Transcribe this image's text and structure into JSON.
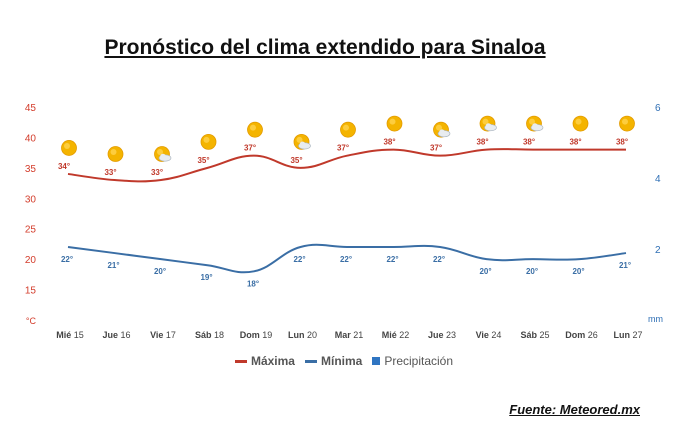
{
  "title": "Pronóstico del clima extendido para Sinaloa",
  "source": "Fuente: Meteored.mx",
  "colors": {
    "max": "#c0392b",
    "min": "#3a6ea5",
    "precip": "#2f75c2",
    "axis_left": "#d33c2b",
    "axis_right": "#2f6fb5"
  },
  "legend": {
    "max_label": "Máxima",
    "min_label": "Mínima",
    "precip_label": "Precipitación"
  },
  "chart_data": {
    "type": "line",
    "categories": [
      {
        "day": "Mié",
        "num": "15"
      },
      {
        "day": "Jue",
        "num": "16"
      },
      {
        "day": "Vie",
        "num": "17"
      },
      {
        "day": "Sáb",
        "num": "18"
      },
      {
        "day": "Dom",
        "num": "19"
      },
      {
        "day": "Lun",
        "num": "20"
      },
      {
        "day": "Mar",
        "num": "21"
      },
      {
        "day": "Mié",
        "num": "22"
      },
      {
        "day": "Jue",
        "num": "23"
      },
      {
        "day": "Vie",
        "num": "24"
      },
      {
        "day": "Sáb",
        "num": "25"
      },
      {
        "day": "Dom",
        "num": "26"
      },
      {
        "day": "Lun",
        "num": "27"
      }
    ],
    "series": [
      {
        "name": "Máxima",
        "values": [
          34,
          33,
          33,
          35,
          37,
          35,
          37,
          38,
          37,
          38,
          38,
          38,
          38
        ],
        "labels": [
          "34°",
          "33°",
          "33°",
          "35°",
          "37°",
          "35°",
          "37°",
          "38°",
          "37°",
          "38°",
          "38°",
          "38°",
          "38°"
        ]
      },
      {
        "name": "Mínima",
        "values": [
          22,
          21,
          20,
          19,
          18,
          22,
          22,
          22,
          22,
          20,
          20,
          20,
          21
        ],
        "labels": [
          "22°",
          "21°",
          "20°",
          "19°",
          "18°",
          "22°",
          "22°",
          "22°",
          "22°",
          "20°",
          "20°",
          "20°",
          "21°"
        ]
      },
      {
        "name": "Precipitación",
        "values": [
          0,
          0,
          0,
          0,
          0,
          0,
          0,
          0,
          0,
          0,
          0,
          0,
          0
        ]
      }
    ],
    "icons": [
      "sun",
      "sun",
      "sun-cloud",
      "sun",
      "sun",
      "sun-cloud",
      "sun",
      "sun",
      "sun-cloud",
      "sun-cloud",
      "sun-cloud",
      "sun",
      "sun"
    ],
    "y_left": {
      "ticks": [
        15,
        20,
        25,
        30,
        35,
        40,
        45
      ],
      "unit": "°C",
      "ylim": [
        10,
        45
      ]
    },
    "y_right": {
      "ticks": [
        2,
        4,
        6
      ],
      "unit": "mm",
      "ylim": [
        0,
        6
      ]
    },
    "grid": false
  }
}
